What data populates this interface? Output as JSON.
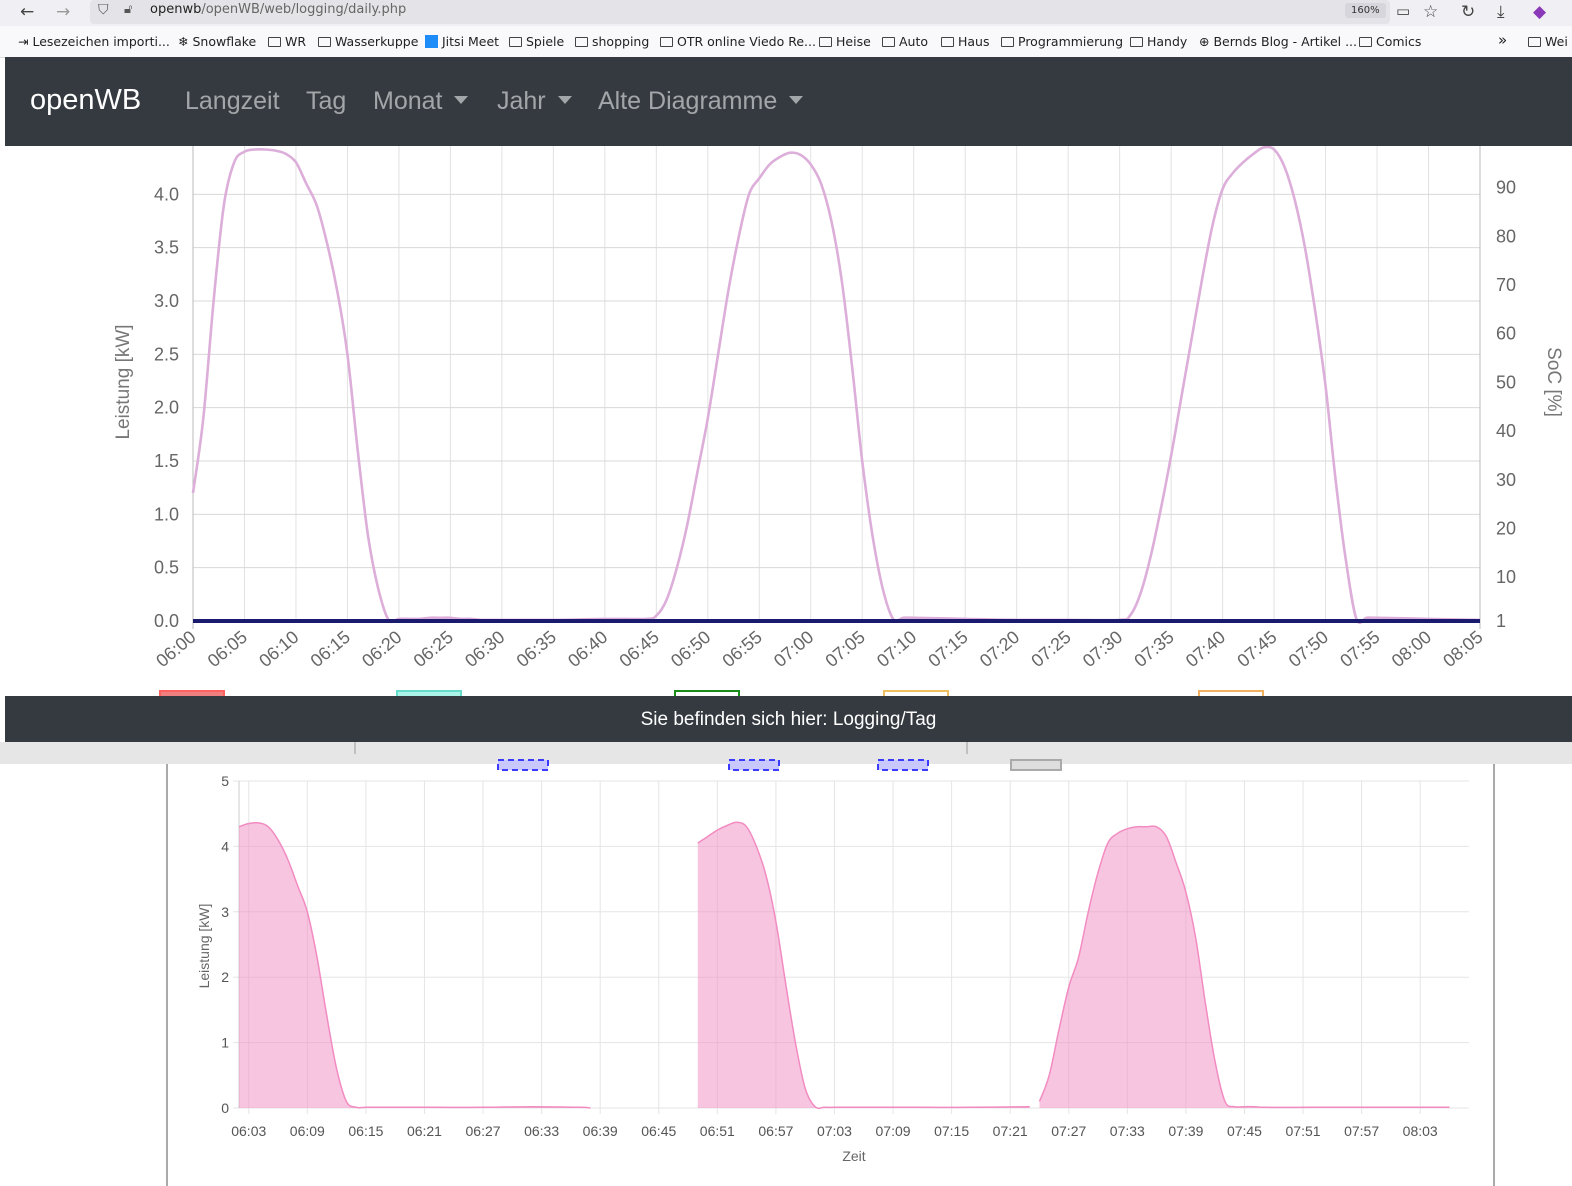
{
  "browser": {
    "url_host": "openwb",
    "url_path": "/openWB/web/logging/daily.php",
    "zoom": "160%",
    "bookmarks": [
      "Lesezeichen importi...",
      "Snowflake",
      "WR",
      "Wasserkuppe",
      "Jitsi Meet",
      "Spiele",
      "shopping",
      "OTR online Viedo Re...",
      "Heise",
      "Auto",
      "Haus",
      "Programmierung",
      "Handy",
      "Bernds Blog - Artikel ...",
      "Comics",
      "Wei"
    ]
  },
  "navbar": {
    "brand": "openWB",
    "links": [
      "Langzeit",
      "Tag",
      "Monat",
      "Jahr",
      "Alte Diagramme"
    ]
  },
  "footer": {
    "text": "Sie befinden sich hier: Logging/Tag"
  },
  "chart_data": [
    {
      "type": "line",
      "ylabel": "Leistung [kW]",
      "y2label": "SoC [%]",
      "ylim": [
        0,
        4.5
      ],
      "y2lim": [
        1,
        100
      ],
      "yticks": [
        "0.0",
        "0.5",
        "1.0",
        "1.5",
        "2.0",
        "2.5",
        "3.0",
        "3.5",
        "4.0"
      ],
      "y2ticks": [
        "1",
        "10",
        "20",
        "30",
        "40",
        "50",
        "60",
        "70",
        "80",
        "90"
      ],
      "xticks": [
        "06:00",
        "06:05",
        "06:10",
        "06:15",
        "06:20",
        "06:25",
        "06:30",
        "06:35",
        "06:40",
        "06:45",
        "06:50",
        "06:55",
        "07:00",
        "07:05",
        "07:10",
        "07:15",
        "07:20",
        "07:25",
        "07:30",
        "07:35",
        "07:40",
        "07:45",
        "07:50",
        "07:55",
        "08:00",
        "08:05"
      ],
      "grid": true,
      "series": [
        {
          "color": "#dcaed9",
          "x": [
            0,
            1,
            2,
            3,
            4,
            5,
            6,
            7,
            8,
            9,
            10,
            11,
            12,
            13,
            14,
            15,
            16,
            17,
            18,
            19,
            20,
            21,
            22,
            23,
            24,
            25,
            26,
            27,
            28,
            30,
            35,
            40,
            44,
            45,
            46,
            47,
            48,
            49,
            50,
            51,
            52,
            53,
            54,
            55,
            56,
            57,
            58,
            59,
            60,
            61,
            62,
            63,
            64,
            65,
            66,
            67,
            68,
            69,
            70,
            75,
            80,
            85,
            90,
            91,
            92,
            93,
            94,
            95,
            96,
            97,
            98,
            99,
            100,
            101,
            102,
            103,
            104,
            105,
            106,
            107,
            108,
            109,
            110,
            111,
            112,
            113,
            114,
            115,
            120,
            125
          ],
          "y": [
            1.2,
            1.9,
            3.0,
            3.9,
            4.3,
            4.4,
            4.42,
            4.42,
            4.41,
            4.38,
            4.3,
            4.1,
            3.9,
            3.55,
            3.1,
            2.5,
            1.6,
            0.8,
            0.3,
            0.01,
            0.02,
            0.02,
            0.02,
            0.03,
            0.03,
            0.03,
            0.02,
            0.02,
            0.01,
            0.01,
            0.01,
            0.02,
            0.02,
            0.05,
            0.2,
            0.5,
            0.9,
            1.4,
            1.9,
            2.5,
            3.1,
            3.6,
            4.0,
            4.15,
            4.28,
            4.35,
            4.39,
            4.37,
            4.28,
            4.1,
            3.75,
            3.2,
            2.4,
            1.5,
            0.8,
            0.3,
            0.02,
            0.03,
            0.03,
            0.02,
            0.01,
            0.01,
            0.01,
            0.05,
            0.25,
            0.6,
            1.05,
            1.55,
            2.1,
            2.65,
            3.2,
            3.7,
            4.05,
            4.2,
            4.3,
            4.38,
            4.44,
            4.42,
            4.26,
            3.95,
            3.5,
            2.9,
            2.2,
            1.3,
            0.55,
            0.02,
            0.03,
            0.03,
            0.02,
            0.01
          ]
        },
        {
          "color": "#1a1a6e",
          "x": [
            0,
            125
          ],
          "y": [
            0,
            0
          ]
        }
      ]
    },
    {
      "type": "area",
      "ylabel": "Leistung [kW]",
      "xlabel": "Zeit",
      "ylim": [
        0,
        5
      ],
      "yticks": [
        "0",
        "1",
        "2",
        "3",
        "4",
        "5"
      ],
      "xticks": [
        "06:03",
        "06:09",
        "06:15",
        "06:21",
        "06:27",
        "06:33",
        "06:39",
        "06:45",
        "06:51",
        "06:57",
        "07:03",
        "07:09",
        "07:15",
        "07:21",
        "07:27",
        "07:33",
        "07:39",
        "07:45",
        "07:51",
        "07:57",
        "08:03"
      ],
      "grid": true,
      "series": [
        {
          "color": "#f28bc1",
          "segments": [
            {
              "x": [
                0,
                1,
                2,
                3,
                4,
                5,
                6,
                7,
                8,
                9,
                10,
                11,
                12,
                13,
                14,
                15,
                20,
                25,
                30,
                35,
                36
              ],
              "y": [
                4.3,
                4.35,
                4.36,
                4.3,
                4.1,
                3.8,
                3.4,
                3.0,
                2.3,
                1.4,
                0.6,
                0.1,
                0.01,
                0.01,
                0.01,
                0.01,
                0.01,
                0.01,
                0.02,
                0.01,
                0.0
              ]
            },
            {
              "x": [
                47,
                48,
                49,
                50,
                51,
                52,
                53,
                54,
                55,
                56,
                57,
                58,
                59,
                60,
                61,
                62,
                63,
                70,
                75,
                81
              ],
              "y": [
                4.05,
                4.15,
                4.25,
                4.32,
                4.37,
                4.3,
                4.0,
                3.55,
                2.85,
                1.9,
                1.0,
                0.3,
                0.02,
                0.01,
                0.01,
                0.01,
                0.01,
                0.01,
                0.01,
                0.02
              ]
            },
            {
              "x": [
                82,
                83,
                84,
                85,
                86,
                87,
                88,
                89,
                90,
                91,
                92,
                93,
                94,
                95,
                96,
                97,
                98,
                99,
                100,
                101,
                102,
                103,
                104,
                105,
                110,
                115,
                120,
                124
              ],
              "y": [
                0.1,
                0.5,
                1.2,
                1.85,
                2.3,
                3.0,
                3.6,
                4.05,
                4.2,
                4.27,
                4.3,
                4.3,
                4.3,
                4.15,
                3.75,
                3.3,
                2.6,
                1.6,
                0.7,
                0.1,
                0.02,
                0.02,
                0.02,
                0.01,
                0.01,
                0.01,
                0.01,
                0.01
              ]
            }
          ]
        }
      ]
    }
  ]
}
